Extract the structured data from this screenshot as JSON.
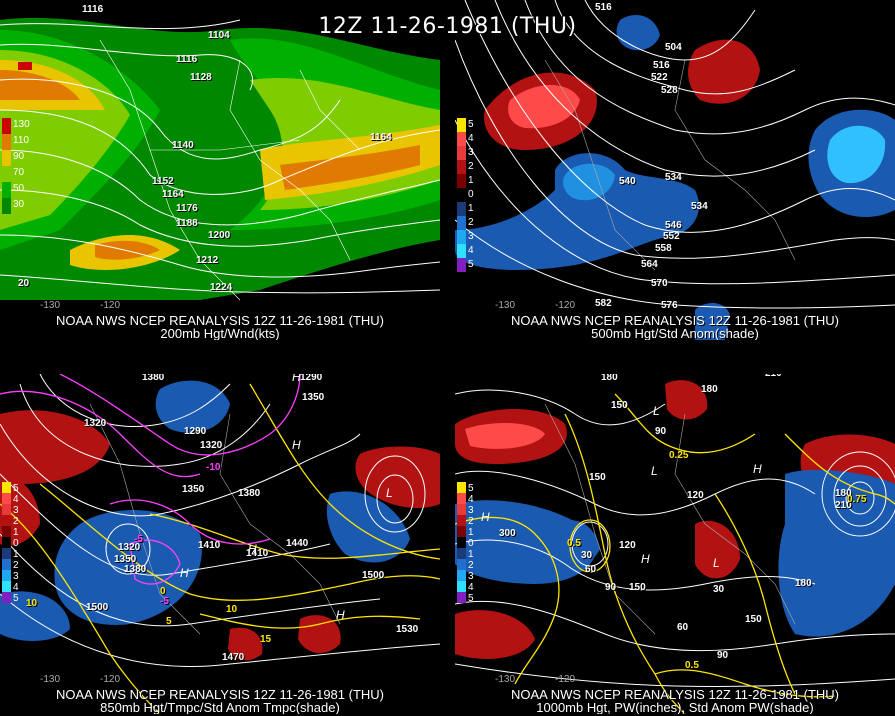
{
  "title": "12Z 11-26-1981 (THU)",
  "colors": {
    "black": "#000000",
    "contour": "#ffffff",
    "temp_contour": "#ffe600",
    "dewpoint_contour": "#ff40ff"
  },
  "panels": [
    {
      "id": "tl",
      "caption_line1": "NOAA NWS NCEP REANALYSIS 12Z 11-26-1981 (THU)",
      "caption_line2": "200mb Hgt/Wnd(kts)",
      "legend": [
        {
          "label": "130",
          "color": "#cc0000"
        },
        {
          "label": "110",
          "color": "#e07a00"
        },
        {
          "label": "90",
          "color": "#e9c400"
        },
        {
          "label": "70",
          "color": "#7fcc00"
        },
        {
          "label": "50",
          "color": "#00b000"
        },
        {
          "label": "30",
          "color": "#008800"
        }
      ],
      "lon_labels": [
        "-130",
        "-120"
      ],
      "contour_labels": [
        "1116",
        "1104",
        "1116",
        "1128",
        "1140",
        "1152",
        "1164",
        "1176",
        "1188",
        "1200",
        "1212",
        "1224",
        "1164",
        "20"
      ]
    },
    {
      "id": "tr",
      "caption_line1": "NOAA NWS NCEP REANALYSIS 12Z 11-26-1981 (THU)",
      "caption_line2": "500mb Hgt/Std Anom(shade)",
      "legend": [
        {
          "label": "5",
          "color": "#ff0000"
        },
        {
          "label": "4",
          "color": "#ff4a4a"
        },
        {
          "label": "3",
          "color": "#e83a3a"
        },
        {
          "label": "2",
          "color": "#b31212"
        },
        {
          "label": "1",
          "color": "#7a0000"
        },
        {
          "label": "0",
          "color": "#000000"
        },
        {
          "label": "1",
          "color": "#1a3a7a"
        },
        {
          "label": "2",
          "color": "#2070d0"
        },
        {
          "label": "3",
          "color": "#20a8f0"
        },
        {
          "label": "4",
          "color": "#30e0ff"
        },
        {
          "label": "5",
          "color": "#8020c0"
        }
      ],
      "lon_labels": [
        "-130",
        "-120"
      ],
      "contour_labels": [
        "516",
        "504",
        "516",
        "522",
        "528",
        "534",
        "540",
        "534",
        "546",
        "552",
        "558",
        "564",
        "570",
        "576",
        "582"
      ]
    },
    {
      "id": "bl",
      "caption_line1": "NOAA NWS NCEP REANALYSIS 12Z 11-26-1981 (THU)",
      "caption_line2": "850mb Hgt/Tmpc/Std Anom Tmpc(shade)",
      "legend": [
        {
          "label": "5",
          "color": "#ff0000"
        },
        {
          "label": "4",
          "color": "#ff4a4a"
        },
        {
          "label": "3",
          "color": "#e83a3a"
        },
        {
          "label": "2",
          "color": "#b31212"
        },
        {
          "label": "1",
          "color": "#7a0000"
        },
        {
          "label": "0",
          "color": "#000000"
        },
        {
          "label": "1",
          "color": "#1a3a7a"
        },
        {
          "label": "2",
          "color": "#2070d0"
        },
        {
          "label": "3",
          "color": "#20a8f0"
        },
        {
          "label": "4",
          "color": "#30e0ff"
        },
        {
          "label": "5",
          "color": "#8020c0"
        }
      ],
      "lon_labels": [
        "-130",
        "-120"
      ],
      "contour_labels": [
        "1380",
        "1290",
        "1320",
        "1350",
        "1380",
        "1290",
        "1320",
        "1350",
        "1410",
        "1320",
        "1350",
        "1380",
        "1410",
        "1440",
        "1500",
        "1470",
        "1530",
        "1500"
      ],
      "temp_labels": [
        "10",
        "5",
        "0",
        "-5",
        "-10",
        "15",
        "10",
        "-5"
      ],
      "high_low": [
        "H",
        "H",
        "H",
        "L",
        "H",
        "H"
      ]
    },
    {
      "id": "br",
      "caption_line1": "NOAA NWS NCEP REANALYSIS 12Z 11-26-1981 (THU)",
      "caption_line2": "1000mb Hgt, PW(inches), Std Anom PW(shade)",
      "legend": [
        {
          "label": "5",
          "color": "#ff0000"
        },
        {
          "label": "4",
          "color": "#ff4a4a"
        },
        {
          "label": "3",
          "color": "#e83a3a"
        },
        {
          "label": "2",
          "color": "#b31212"
        },
        {
          "label": "1",
          "color": "#7a0000"
        },
        {
          "label": "0",
          "color": "#000000"
        },
        {
          "label": "1",
          "color": "#1a3a7a"
        },
        {
          "label": "2",
          "color": "#2070d0"
        },
        {
          "label": "3",
          "color": "#20a8f0"
        },
        {
          "label": "4",
          "color": "#30e0ff"
        },
        {
          "label": "5",
          "color": "#8020c0"
        }
      ],
      "lon_labels": [
        "-130",
        "-120"
      ],
      "contour_labels": [
        "180",
        "150",
        "180",
        "210",
        "90",
        "120",
        "150",
        "300",
        "30",
        "60",
        "90",
        "120",
        "150",
        "180",
        "30",
        "60",
        "90",
        "150",
        "180",
        "210"
      ],
      "pw_labels": [
        "0.25",
        "0.5",
        "0.75",
        "0.5"
      ],
      "high_low": [
        "H",
        "L",
        "H",
        "H",
        "L",
        "L"
      ]
    }
  ]
}
